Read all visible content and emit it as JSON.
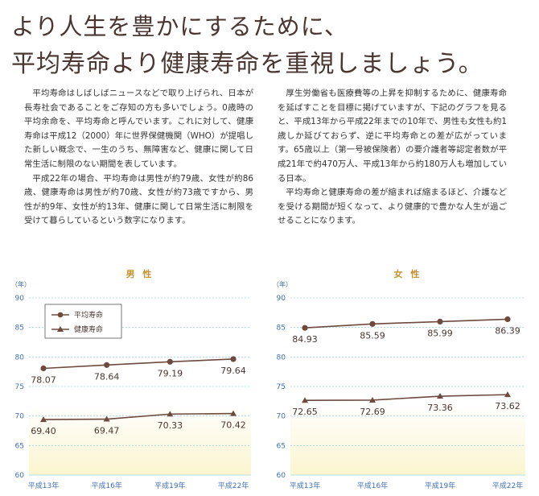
{
  "headline": {
    "line1": "より人生を豊かにするために、",
    "line2": "平均寿命より健康寿命を重視しましょう。"
  },
  "left_column": {
    "paragraphs": [
      "平均寿命はしばしばニュースなどで取り上げられ、日本が長寿社会であることをご存知の方も多いでしょう。0歳時の平均余命を、平均寿命と呼んでいます。これに対して、健康寿命は平成12（2000）年に世界保健機関（WHO）が提唱した新しい概念で、一生のうち、無障害など、健康に関して日常生活に制限のない期間を表しています。",
      "平成22年の場合、平均寿命は男性が約79歳、女性が約86歳、健康寿命は男性が約70歳、女性が約73歳ですから、男性が約9年、女性が約13年、健康に関して日常生活に制限を受けて暮らしているという数字になります。"
    ]
  },
  "right_column": {
    "paragraphs": [
      "厚生労働省も医療費等の上昇を抑制するために、健康寿命を延ばすことを目標に掲げていますが、下記のグラフを見ると、平成13年から平成22年までの10年で、男性も女性も約1歳しか延びておらず、逆に平均寿命との差が広がっています。65歳以上（第一号被保険者）の要介護者等認定者数が平成21年で約470万人、平成13年から約180万人も増加している日本。",
      "平均寿命と健康寿命の差が縮まれば縮まるほど、介護などを受ける期間が短くなって、より健康的で豊かな人生が過ごせることになります。"
    ]
  },
  "chart_data": [
    {
      "type": "line",
      "title": "男 性",
      "ylabel": "（年）",
      "categories": [
        "平成13年",
        "平成16年",
        "平成19年",
        "平成22年"
      ],
      "ylim": [
        60,
        90
      ],
      "yticks": [
        60,
        65,
        70,
        75,
        80,
        85,
        90
      ],
      "grid": true,
      "legend_position": "top-left",
      "series": [
        {
          "name": "平均寿命",
          "marker": "circle",
          "values": [
            78.07,
            78.64,
            79.19,
            79.64
          ],
          "labels": [
            "78.07",
            "78.64",
            "79.19",
            "79.64"
          ]
        },
        {
          "name": "健康寿命",
          "marker": "triangle",
          "values": [
            69.4,
            69.47,
            70.33,
            70.42
          ],
          "labels": [
            "69.40",
            "69.47",
            "70.33",
            "70.42"
          ]
        }
      ]
    },
    {
      "type": "line",
      "title": "女 性",
      "ylabel": "（年）",
      "categories": [
        "平成13年",
        "平成16年",
        "平成19年",
        "平成22年"
      ],
      "ylim": [
        60,
        90
      ],
      "yticks": [
        60,
        65,
        70,
        75,
        80,
        85,
        90
      ],
      "grid": true,
      "series": [
        {
          "name": "平均寿命",
          "marker": "circle",
          "values": [
            84.93,
            85.59,
            85.99,
            86.39
          ],
          "labels": [
            "84.93",
            "85.59",
            "85.99",
            "86.39"
          ]
        },
        {
          "name": "健康寿命",
          "marker": "triangle",
          "values": [
            72.65,
            72.69,
            73.36,
            73.62
          ],
          "labels": [
            "72.65",
            "72.69",
            "73.36",
            "73.62"
          ]
        }
      ]
    }
  ],
  "colors": {
    "headline": "#4a3630",
    "line": "#6e4a3e",
    "axis_text": "#3f6fb5",
    "title": "#c5932f",
    "grid": "#9fd6e6",
    "band_bottom": "#fbf5cf"
  }
}
